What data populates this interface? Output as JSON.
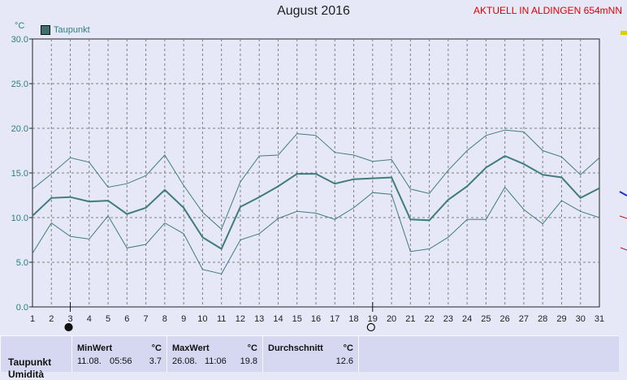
{
  "header": {
    "title": "August 2016",
    "banner": "AKTUELL IN ALDINGEN 654mNN",
    "unit": "°C"
  },
  "legend": {
    "label": "Taupunkt",
    "color": "#3f7070"
  },
  "colors": {
    "series_main": "#3f7c7c",
    "series_band": "#3f7c7c",
    "grid": "#7f7f7f",
    "plot_bg": "#e6e8f8"
  },
  "chart_data": {
    "type": "line",
    "title": "August 2016",
    "ylabel": "°C",
    "x": [
      1,
      2,
      3,
      4,
      5,
      6,
      7,
      8,
      9,
      10,
      11,
      12,
      13,
      14,
      15,
      16,
      17,
      18,
      19,
      20,
      21,
      22,
      23,
      24,
      25,
      26,
      27,
      28,
      29,
      30,
      31
    ],
    "ylim": [
      0,
      30
    ],
    "yticks": [
      "0.0",
      "5.0",
      "10.0",
      "15.0",
      "20.0",
      "25.0",
      "30.0"
    ],
    "xticks": [
      "1",
      "2",
      "3",
      "4",
      "5",
      "6",
      "7",
      "8",
      "9",
      "10",
      "11",
      "12",
      "13",
      "14",
      "15",
      "16",
      "17",
      "18",
      "19",
      "20",
      "21",
      "22",
      "23",
      "24",
      "25",
      "26",
      "27",
      "28",
      "29",
      "30",
      "31"
    ],
    "grid": true,
    "legend_position": "top-left",
    "series": [
      {
        "name": "Taupunkt",
        "role": "mean",
        "values": [
          10.2,
          12.2,
          12.3,
          11.8,
          11.9,
          10.4,
          11.1,
          13.1,
          11.1,
          7.8,
          6.5,
          11.2,
          12.3,
          13.5,
          14.9,
          14.9,
          13.8,
          14.3,
          14.4,
          14.5,
          9.8,
          9.7,
          12.0,
          13.5,
          15.6,
          16.9,
          16.0,
          14.8,
          14.5,
          12.2,
          13.3
        ]
      },
      {
        "role": "max",
        "values": [
          13.2,
          14.9,
          16.7,
          16.2,
          13.4,
          13.8,
          14.7,
          17.0,
          13.6,
          10.6,
          8.7,
          14.0,
          16.9,
          17.0,
          19.4,
          19.2,
          17.3,
          17.0,
          16.3,
          16.5,
          13.2,
          12.7,
          15.3,
          17.5,
          19.2,
          19.8,
          19.6,
          17.5,
          16.8,
          14.8,
          16.7
        ]
      },
      {
        "role": "min",
        "values": [
          6.0,
          9.4,
          7.9,
          7.6,
          10.2,
          6.6,
          7.0,
          9.4,
          8.2,
          4.2,
          3.7,
          7.5,
          8.2,
          9.9,
          10.7,
          10.5,
          9.8,
          11.1,
          12.8,
          12.6,
          6.2,
          6.5,
          7.8,
          9.8,
          9.8,
          13.4,
          10.9,
          9.3,
          11.9,
          10.7,
          10.0
        ]
      }
    ],
    "markers": [
      {
        "day": 3,
        "symbol": "filled-circle"
      },
      {
        "day": 19,
        "symbol": "open-circle"
      }
    ]
  },
  "stats": {
    "row_label": "Taupunkt",
    "row_label_2": "Umidità",
    "min": {
      "label": "MinWert",
      "unit": "°C",
      "date": "11.08.",
      "time": "05:56",
      "value": "3.7"
    },
    "max": {
      "label": "MaxWert",
      "unit": "°C",
      "date": "26.08.",
      "time": "11:06",
      "value": "19.8"
    },
    "avg": {
      "label": "Durchschnitt",
      "unit": "°C",
      "value": "12.6"
    }
  }
}
